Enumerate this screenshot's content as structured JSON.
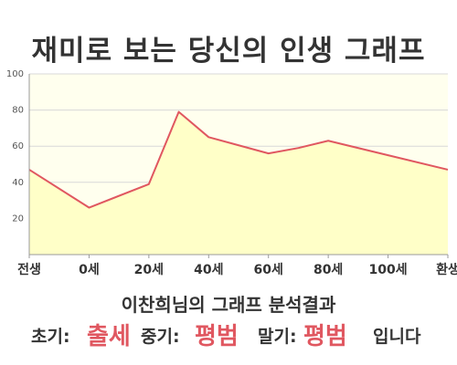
{
  "title": "재미로 보는 당신의 인생 그래프",
  "chart_data": {
    "type": "area",
    "title": "재미로 보는 당신의 인생 그래프",
    "x_tick_labels": [
      "전생",
      "0세",
      "20세",
      "40세",
      "60세",
      "80세",
      "100세",
      "환생"
    ],
    "ylim": [
      0,
      100
    ],
    "y_ticks": [
      20,
      40,
      60,
      80,
      100
    ],
    "y_tick_labels": [
      "20",
      "40",
      "60",
      "80",
      "100"
    ],
    "points": [
      {
        "x": "전생",
        "y": 47
      },
      {
        "x": "0세",
        "y": 26
      },
      {
        "x": "20세",
        "y": 39
      },
      {
        "x": "~30세",
        "y": 79
      },
      {
        "x": "40세",
        "y": 65
      },
      {
        "x": "60세",
        "y": 56
      },
      {
        "x": "70세",
        "y": 59
      },
      {
        "x": "80세",
        "y": 63
      },
      {
        "x": "100세",
        "y": 55
      },
      {
        "x": "환생",
        "y": 47
      }
    ],
    "grid": true,
    "colors": {
      "line": "#e05760",
      "fill": "#ffffc8",
      "grid": "#d8d8d8",
      "plot_bg": "#ffffee"
    }
  },
  "result": {
    "title": "이찬희님의 그래프 분석결과",
    "early_label": "초기:",
    "early_value": "출세",
    "mid_label": "중기:",
    "mid_value": "평범",
    "late_label": "말기:",
    "late_value": "평범",
    "ending": "입니다"
  }
}
